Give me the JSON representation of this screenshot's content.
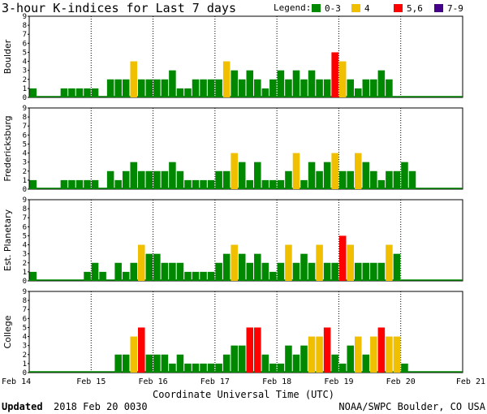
{
  "chart_data": {
    "type": "bar",
    "title": "3-hour K-indices for Last 7 days",
    "legend_title": "Legend:",
    "legend": [
      {
        "label": "0-3",
        "color": "#008800"
      },
      {
        "label": "4",
        "color": "#f0c000"
      },
      {
        "label": "5,6",
        "color": "#ff0000"
      },
      {
        "label": "7-9",
        "color": "#440088"
      }
    ],
    "x_ticks": [
      "Feb 14",
      "Feb 15",
      "Feb 16",
      "Feb 17",
      "Feb 18",
      "Feb 19",
      "Feb 20",
      "Feb 21"
    ],
    "xlabel": "Coordinate Universal Time (UTC)",
    "ylim": [
      0,
      9
    ],
    "y_ticks": [
      "0",
      "1",
      "2",
      "3",
      "4",
      "5",
      "6",
      "7",
      "8",
      "9"
    ],
    "panels": [
      {
        "name": "Boulder",
        "values": [
          1,
          0,
          0,
          0,
          1,
          1,
          1,
          1,
          1,
          0,
          2,
          2,
          2,
          4,
          2,
          2,
          2,
          2,
          3,
          1,
          1,
          2,
          2,
          2,
          2,
          4,
          3,
          2,
          3,
          2,
          1,
          2,
          3,
          2,
          3,
          2,
          3,
          2,
          2,
          5,
          4,
          2,
          1,
          2,
          2,
          3,
          2
        ]
      },
      {
        "name": "Fredericksburg",
        "values": [
          1,
          0,
          0,
          0,
          1,
          1,
          1,
          1,
          1,
          0,
          2,
          1,
          2,
          3,
          2,
          2,
          2,
          2,
          3,
          2,
          1,
          1,
          1,
          1,
          2,
          2,
          4,
          3,
          1,
          3,
          1,
          1,
          1,
          2,
          4,
          1,
          3,
          2,
          3,
          4,
          2,
          2,
          4,
          3,
          2,
          1,
          2,
          2,
          3,
          2
        ]
      },
      {
        "name": "Est. Planetary",
        "values": [
          1,
          0,
          0,
          0,
          0,
          0,
          0,
          1,
          2,
          1,
          0,
          2,
          1,
          2,
          4,
          3,
          3,
          2,
          2,
          2,
          1,
          1,
          1,
          1,
          2,
          3,
          4,
          3,
          2,
          3,
          2,
          1,
          2,
          4,
          2,
          3,
          2,
          4,
          2,
          2,
          5,
          4,
          2,
          2,
          2,
          2,
          4,
          3
        ]
      },
      {
        "name": "College",
        "values": [
          0,
          0,
          0,
          0,
          0,
          0,
          0,
          0,
          0,
          0,
          0,
          2,
          2,
          4,
          5,
          2,
          2,
          2,
          1,
          2,
          1,
          1,
          1,
          1,
          1,
          2,
          3,
          3,
          5,
          5,
          2,
          1,
          1,
          3,
          2,
          3,
          4,
          4,
          5,
          2,
          1,
          3,
          4,
          2,
          4,
          5,
          4,
          4,
          1,
          0
        ]
      }
    ]
  },
  "footer": {
    "updated_label": "Updated",
    "updated_value": "2018 Feb 20 0030",
    "source": "NOAA/SWPC Boulder, CO USA"
  }
}
